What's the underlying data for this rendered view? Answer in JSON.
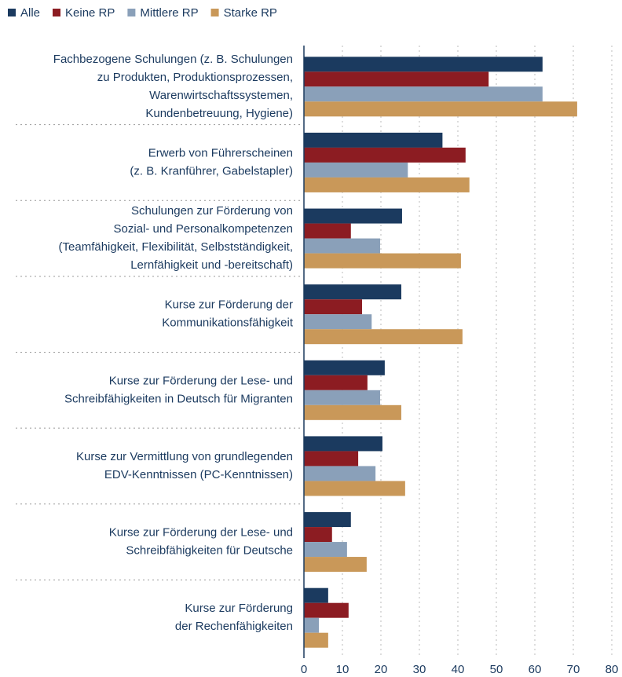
{
  "chart_data": {
    "type": "hbar",
    "categories": [
      [
        "Fachbezogene Schulungen (z. B. Schulungen",
        "zu Produkten, Produktionsprozessen,",
        "Warenwirtschaftssystemen,",
        "Kundenbetreuung, Hygiene)"
      ],
      [
        "Erwerb von Führerscheinen",
        "(z. B. Kranführer, Gabelstapler)"
      ],
      [
        "Schulungen zur Förderung von",
        "Sozial- und Personalkompetenzen",
        "(Teamfähigkeit, Flexibilität, Selbstständigkeit,",
        "Lernfähigkeit und -bereitschaft)"
      ],
      [
        "Kurse zur Förderung der",
        "Kommunikationsfähigkeit"
      ],
      [
        "Kurse zur Förderung der Lese- und",
        "Schreibfähigkeiten in Deutsch für Migranten"
      ],
      [
        "Kurse zur Vermittlung von grundlegenden",
        "EDV-Kenntnissen (PC-Kenntnissen)"
      ],
      [
        "Kurse zur Förderung der Lese- und",
        "Schreibfähigkeiten für Deutsche"
      ],
      [
        "Kurse zur Förderung",
        "der Rechenfähigkeiten"
      ]
    ],
    "series": [
      {
        "name": "Alle",
        "color": "#1b3a5f",
        "values": [
          62,
          36,
          25.5,
          25.3,
          21,
          20.4,
          12.2,
          6.3
        ]
      },
      {
        "name": "Keine RP",
        "color": "#8c1c22",
        "values": [
          48,
          42,
          12.2,
          15.1,
          16.5,
          14.1,
          7.3,
          11.6
        ]
      },
      {
        "name": "Mittlere RP",
        "color": "#8aa0b9",
        "values": [
          62,
          27,
          19.8,
          17.6,
          19.8,
          18.6,
          11.2,
          3.9
        ]
      },
      {
        "name": "Starke RP",
        "color": "#c99859",
        "values": [
          71,
          43,
          40.8,
          41.2,
          25.3,
          26.3,
          16.3,
          6.3
        ]
      }
    ],
    "xlim": [
      0,
      80
    ],
    "xticks": [
      0,
      10,
      20,
      30,
      40,
      50,
      60,
      70,
      80
    ],
    "grid": true,
    "legend": "top-left"
  }
}
